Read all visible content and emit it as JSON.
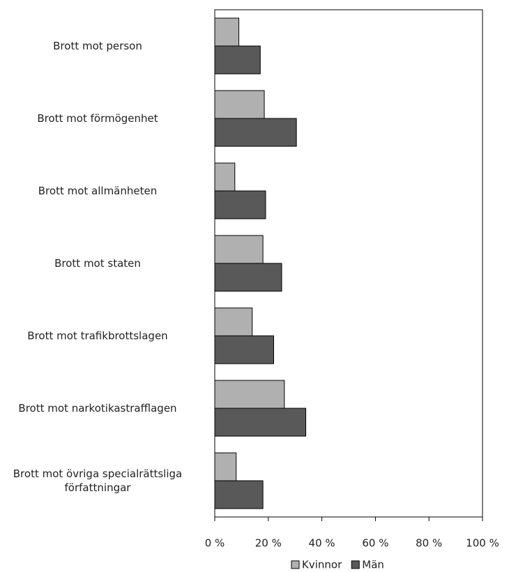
{
  "chart_data": {
    "type": "bar",
    "orientation": "horizontal",
    "categories": [
      "Brott mot person",
      "Brott mot förmögenhet",
      "Brott mot allmänheten",
      "Brott mot staten",
      "Brott mot trafikbrottslagen",
      "Brott mot narkotikastrafflagen",
      "Brott mot övriga specialrättsliga\nförfattningar"
    ],
    "series": [
      {
        "name": "Kvinnor",
        "color": "#b0b0b0",
        "values": [
          9,
          18.5,
          7.5,
          18,
          14,
          26,
          8
        ]
      },
      {
        "name": "Män",
        "color": "#595959",
        "values": [
          17,
          30.5,
          19,
          25,
          22,
          34,
          18
        ]
      }
    ],
    "xlim": [
      0,
      100
    ],
    "xticks": [
      {
        "value": 0,
        "label": "0 %"
      },
      {
        "value": 20,
        "label": "20 %"
      },
      {
        "value": 40,
        "label": "40 %"
      },
      {
        "value": 60,
        "label": "60 %"
      },
      {
        "value": 80,
        "label": "80 %"
      },
      {
        "value": 100,
        "label": "100 %"
      }
    ],
    "legend": "bottom"
  }
}
